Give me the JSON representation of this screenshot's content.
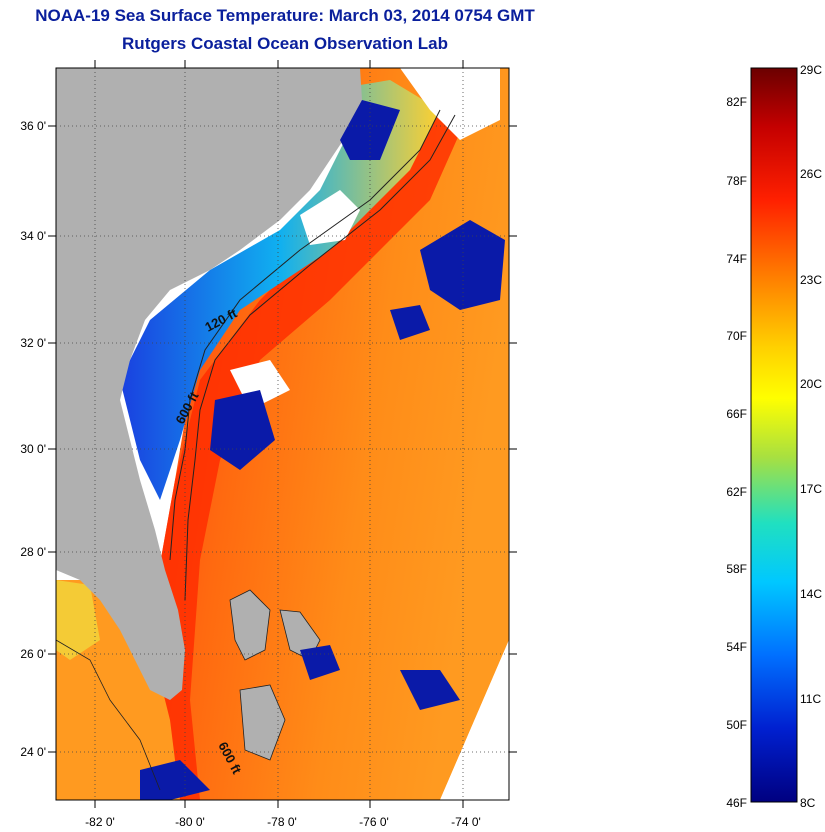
{
  "title": "NOAA-19 Sea Surface Temperature:  March 03, 2014 0754 GMT",
  "subtitle": "Rutgers Coastal Ocean Observation Lab",
  "map": {
    "lat_labels": [
      "36 0'",
      "34 0'",
      "32 0'",
      "30 0'",
      "28 0'",
      "26 0'",
      "24 0'"
    ],
    "lon_labels": [
      "-82 0'",
      "-80 0'",
      "-78 0'",
      "-76 0'",
      "-74 0'"
    ],
    "contours": [
      "120 ft",
      "600 ft",
      "600 ft"
    ]
  },
  "colorbar": {
    "fahrenheit": [
      "82F",
      "78F",
      "74F",
      "70F",
      "66F",
      "62F",
      "58F",
      "54F",
      "50F",
      "46F"
    ],
    "celsius": [
      "29C",
      "26C",
      "23C",
      "20C",
      "17C",
      "14C",
      "11C",
      "8C"
    ],
    "colors": [
      "#6b0000",
      "#c40000",
      "#ff2000",
      "#ff7a00",
      "#ffd000",
      "#ffff00",
      "#a8e040",
      "#20e0c0",
      "#00c8ff",
      "#0070ff",
      "#0020d0",
      "#000080"
    ]
  },
  "colors": {
    "land": "#b0b0b0",
    "cloud": "#ffffff",
    "title": "#0a1f9c"
  }
}
